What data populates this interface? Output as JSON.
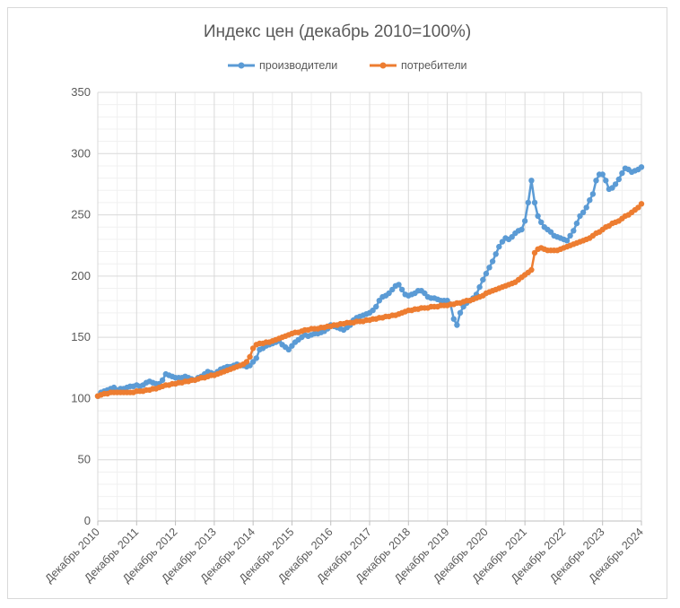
{
  "chart_data": {
    "type": "line",
    "title": "Индекс цен (декабрь 2010=100%)",
    "xlabel": "",
    "ylabel": "",
    "ylim": [
      0,
      350
    ],
    "yticks": [
      0,
      50,
      100,
      150,
      200,
      250,
      300,
      350
    ],
    "grid": true,
    "minor_grid": true,
    "legend_position": "top",
    "x_tick_labels": [
      "Декабрь 2010",
      "Декабрь 2011",
      "Декабрь 2012",
      "Декабрь 2013",
      "Декабрь 2014",
      "Декабрь 2015",
      "Декабрь 2016",
      "Декабрь 2017",
      "Декабрь 2018",
      "Декабрь 2019",
      "Декабрь 2020",
      "Декабрь 2021",
      "Декабрь 2022",
      "Декабрь 2023",
      "Декабрь 2024"
    ],
    "x_range_months": [
      0,
      168
    ],
    "series": [
      {
        "name": "производители",
        "color": "#5b9bd5",
        "x": [
          0,
          1,
          2,
          3,
          4,
          5,
          6,
          7,
          8,
          9,
          10,
          11,
          12,
          13,
          14,
          15,
          16,
          17,
          18,
          19,
          20,
          21,
          22,
          23,
          24,
          25,
          26,
          27,
          28,
          29,
          30,
          31,
          32,
          33,
          34,
          35,
          36,
          37,
          38,
          39,
          40,
          41,
          42,
          43,
          44,
          45,
          46,
          47,
          48,
          49,
          50,
          51,
          52,
          53,
          54,
          55,
          56,
          57,
          58,
          59,
          60,
          61,
          62,
          63,
          64,
          65,
          66,
          67,
          68,
          69,
          70,
          71,
          72,
          73,
          74,
          75,
          76,
          77,
          78,
          79,
          80,
          81,
          82,
          83,
          84,
          85,
          86,
          87,
          88,
          89,
          90,
          91,
          92,
          93,
          94,
          95,
          96,
          97,
          98,
          99,
          100,
          101,
          102,
          103,
          104,
          105,
          106,
          107,
          108,
          109,
          110,
          111,
          112,
          113,
          114,
          115,
          116,
          117,
          118,
          119,
          120,
          121,
          122,
          123,
          124,
          125,
          126,
          127,
          128,
          129,
          130,
          131,
          132,
          133,
          134,
          135,
          136,
          137,
          138,
          139,
          140,
          141,
          142,
          143,
          144,
          145,
          146,
          147,
          148,
          149,
          150,
          151,
          152,
          153,
          154,
          155,
          156,
          157,
          158,
          159,
          160,
          161,
          162,
          163,
          164,
          165,
          166,
          167,
          168
        ],
        "values": [
          102,
          105,
          106,
          107,
          108,
          109,
          107,
          108,
          108,
          109,
          110,
          110,
          111,
          110,
          111,
          113,
          114,
          113,
          112,
          112,
          115,
          120,
          119,
          118,
          117,
          117,
          117,
          118,
          117,
          116,
          115,
          117,
          118,
          120,
          122,
          121,
          120,
          122,
          124,
          125,
          126,
          126,
          127,
          128,
          127,
          127,
          126,
          127,
          130,
          133,
          140,
          141,
          143,
          144,
          145,
          146,
          147,
          144,
          142,
          140,
          143,
          146,
          148,
          150,
          152,
          151,
          152,
          153,
          153,
          154,
          155,
          157,
          160,
          159,
          158,
          157,
          156,
          158,
          160,
          164,
          166,
          167,
          168,
          169,
          170,
          172,
          175,
          180,
          183,
          184,
          186,
          189,
          192,
          193,
          189,
          185,
          184,
          185,
          186,
          188,
          188,
          186,
          183,
          182,
          182,
          181,
          180,
          180,
          180,
          177,
          165,
          160,
          170,
          175,
          178,
          180,
          182,
          185,
          191,
          197,
          202,
          207,
          212,
          218,
          224,
          228,
          231,
          230,
          232,
          235,
          237,
          238,
          245,
          260,
          278,
          260,
          249,
          244,
          240,
          238,
          236,
          233,
          232,
          231,
          230,
          229,
          233,
          237,
          243,
          249,
          252,
          256,
          262,
          267,
          278,
          283,
          283,
          278,
          271,
          272,
          275,
          279,
          284,
          288,
          287,
          285,
          286,
          287,
          289
        ]
      },
      {
        "name": "потребители",
        "color": "#ed7d31",
        "x": [
          0,
          1,
          2,
          3,
          4,
          5,
          6,
          7,
          8,
          9,
          10,
          11,
          12,
          13,
          14,
          15,
          16,
          17,
          18,
          19,
          20,
          21,
          22,
          23,
          24,
          25,
          26,
          27,
          28,
          29,
          30,
          31,
          32,
          33,
          34,
          35,
          36,
          37,
          38,
          39,
          40,
          41,
          42,
          43,
          44,
          45,
          46,
          47,
          48,
          49,
          50,
          51,
          52,
          53,
          54,
          55,
          56,
          57,
          58,
          59,
          60,
          61,
          62,
          63,
          64,
          65,
          66,
          67,
          68,
          69,
          70,
          71,
          72,
          73,
          74,
          75,
          76,
          77,
          78,
          79,
          80,
          81,
          82,
          83,
          84,
          85,
          86,
          87,
          88,
          89,
          90,
          91,
          92,
          93,
          94,
          95,
          96,
          97,
          98,
          99,
          100,
          101,
          102,
          103,
          104,
          105,
          106,
          107,
          108,
          109,
          110,
          111,
          112,
          113,
          114,
          115,
          116,
          117,
          118,
          119,
          120,
          121,
          122,
          123,
          124,
          125,
          126,
          127,
          128,
          129,
          130,
          131,
          132,
          133,
          134,
          135,
          136,
          137,
          138,
          139,
          140,
          141,
          142,
          143,
          144,
          145,
          146,
          147,
          148,
          149,
          150,
          151,
          152,
          153,
          154,
          155,
          156,
          157,
          158,
          159,
          160,
          161,
          162,
          163,
          164,
          165,
          166,
          167,
          168
        ],
        "values": [
          102,
          103,
          104,
          104,
          105,
          105,
          105,
          105,
          105,
          105,
          105,
          105,
          106,
          106,
          106,
          107,
          107,
          108,
          108,
          109,
          110,
          111,
          111,
          112,
          112,
          113,
          113,
          114,
          114,
          115,
          115,
          116,
          117,
          117,
          118,
          119,
          119,
          120,
          121,
          122,
          123,
          124,
          125,
          126,
          127,
          128,
          130,
          134,
          141,
          144,
          145,
          145,
          146,
          146,
          147,
          148,
          149,
          150,
          151,
          152,
          153,
          154,
          154,
          155,
          156,
          156,
          157,
          157,
          157,
          158,
          158,
          159,
          159,
          160,
          160,
          161,
          161,
          162,
          162,
          162,
          163,
          163,
          163,
          164,
          164,
          165,
          165,
          166,
          166,
          167,
          167,
          168,
          168,
          169,
          170,
          171,
          172,
          172,
          173,
          173,
          174,
          174,
          174,
          175,
          175,
          175,
          176,
          176,
          176,
          177,
          177,
          178,
          178,
          179,
          180,
          180,
          181,
          182,
          183,
          184,
          186,
          187,
          188,
          189,
          190,
          191,
          192,
          193,
          194,
          195,
          197,
          199,
          201,
          203,
          205,
          219,
          222,
          223,
          222,
          221,
          221,
          221,
          221,
          222,
          223,
          224,
          225,
          226,
          227,
          228,
          229,
          230,
          231,
          233,
          235,
          236,
          238,
          240,
          241,
          243,
          244,
          245,
          247,
          249,
          250,
          252,
          254,
          256,
          259
        ]
      }
    ]
  }
}
